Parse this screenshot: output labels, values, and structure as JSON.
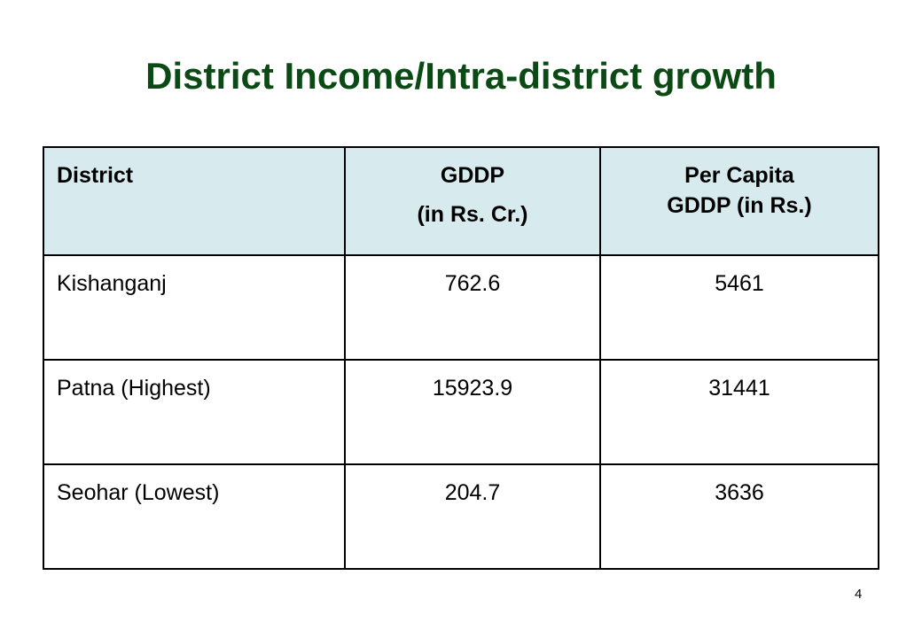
{
  "slide": {
    "title": "District Income/Intra-district growth",
    "page_number": "4"
  },
  "table": {
    "headers": {
      "district": "District",
      "gddp_line1": "GDDP",
      "gddp_line2": "(in Rs. Cr.)",
      "per_capita_line1": "Per Capita",
      "per_capita_line2": "GDDP (in Rs.)"
    },
    "rows": [
      {
        "district": "Kishanganj",
        "gddp": "762.6",
        "per_capita": "5461"
      },
      {
        "district": "Patna (Highest)",
        "gddp": "15923.9",
        "per_capita": "31441"
      },
      {
        "district": "Seohar (Lowest)",
        "gddp": "204.7",
        "per_capita": "3636"
      }
    ]
  },
  "colors": {
    "title": "#0b4a14",
    "header_background": "#d7eaee",
    "border": "#000000"
  }
}
